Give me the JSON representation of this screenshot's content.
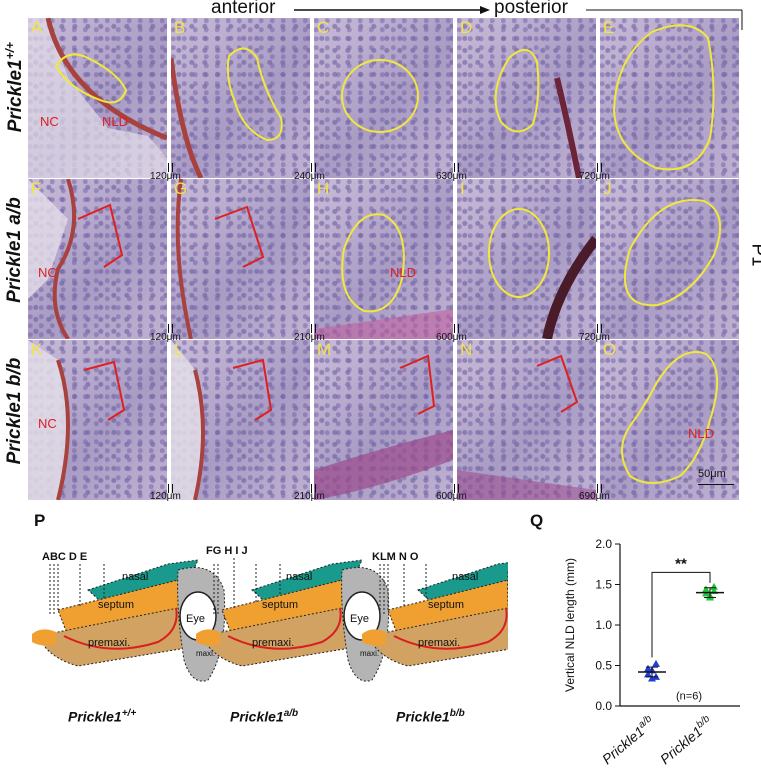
{
  "header": {
    "anterior": "anterior",
    "posterior": "posterior"
  },
  "row_labels": [
    {
      "gene": "Prickle1",
      "genotype": "+/+"
    },
    {
      "gene": "Prickle1",
      "genotype": "a/b"
    },
    {
      "gene": "Prickle1",
      "genotype": "b/b"
    }
  ],
  "age_label": "P1",
  "panels": [
    {
      "letter": "A",
      "labels": [
        "NC",
        "NLD"
      ],
      "outline": "yellow"
    },
    {
      "letter": "B",
      "labels": [],
      "outline": "yellow"
    },
    {
      "letter": "C",
      "labels": [],
      "outline": "yellow"
    },
    {
      "letter": "D",
      "labels": [],
      "outline": "yellow"
    },
    {
      "letter": "E",
      "labels": [],
      "outline": "yellow"
    },
    {
      "letter": "F",
      "labels": [
        "NC"
      ],
      "outline": "red-bracket"
    },
    {
      "letter": "G",
      "labels": [],
      "outline": "red-bracket"
    },
    {
      "letter": "H",
      "labels": [
        "NLD"
      ],
      "outline": "yellow"
    },
    {
      "letter": "I",
      "labels": [],
      "outline": "yellow"
    },
    {
      "letter": "J",
      "labels": [],
      "outline": "yellow"
    },
    {
      "letter": "K",
      "labels": [
        "NC"
      ],
      "outline": "red-bracket"
    },
    {
      "letter": "L",
      "labels": [],
      "outline": "red-bracket"
    },
    {
      "letter": "M",
      "labels": [],
      "outline": "red-bracket"
    },
    {
      "letter": "N",
      "labels": [],
      "outline": "red-bracket"
    },
    {
      "letter": "O",
      "labels": [
        "NLD"
      ],
      "outline": "yellow"
    }
  ],
  "depth_labels": [
    [
      "120μm",
      "240μm",
      "630μm",
      "720μm"
    ],
    [
      "120μm",
      "210μm",
      "600μm",
      "720μm"
    ],
    [
      "120μm",
      "210μm",
      "600μm",
      "690μm"
    ]
  ],
  "scale_bar": "50μm",
  "panel_P": {
    "letter": "P",
    "schematics": [
      {
        "sections": "ABC  D  E",
        "genotype_gene": "Prickle1",
        "genotype": "+/+"
      },
      {
        "sections": "FG  H  I  J",
        "genotype_gene": "Prickle1",
        "genotype": "a/b"
      },
      {
        "sections": "KLM  N  O",
        "genotype_gene": "Prickle1",
        "genotype": "b/b"
      }
    ],
    "region_labels": {
      "nasal": "nasal",
      "septum": "septum",
      "premaxi": "premaxi.",
      "eye": "Eye",
      "maxi": "maxi."
    }
  },
  "panel_Q": {
    "letter": "Q",
    "significance": "**",
    "n_label": "(n=6)"
  },
  "chart_data": {
    "type": "scatter",
    "ylabel": "Vertical  NLD length (mm)",
    "ylim": [
      0.0,
      2.0
    ],
    "yticks": [
      "0.0",
      "0.5",
      "1.0",
      "1.5",
      "2.0"
    ],
    "categories": [
      {
        "gene": "Prickle1",
        "genotype": "a/b"
      },
      {
        "gene": "Prickle1",
        "genotype": "b/b"
      }
    ],
    "series": [
      {
        "category_index": 0,
        "color": "#1f3fd6",
        "points": [
          0.46,
          0.34,
          0.52,
          0.39,
          0.44,
          0.36
        ],
        "mean": 0.42
      },
      {
        "category_index": 1,
        "color": "#22c33a",
        "points": [
          1.44,
          1.36,
          1.47,
          1.39,
          1.34,
          1.42
        ],
        "mean": 1.4
      }
    ]
  }
}
